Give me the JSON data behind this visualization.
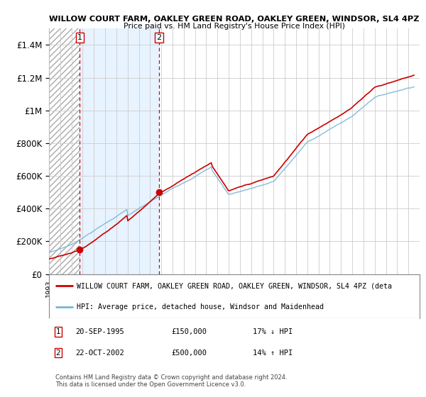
{
  "title": "WILLOW COURT FARM, OAKLEY GREEN ROAD, OAKLEY GREEN, WINDSOR, SL4 4PZ",
  "subtitle": "Price paid vs. HM Land Registry's House Price Index (HPI)",
  "ylim": [
    0,
    1500000
  ],
  "yticks": [
    0,
    200000,
    400000,
    600000,
    800000,
    1000000,
    1200000,
    1400000
  ],
  "ytick_labels": [
    "£0",
    "£200K",
    "£400K",
    "£600K",
    "£800K",
    "£1M",
    "£1.2M",
    "£1.4M"
  ],
  "sale1_year": 1995.72,
  "sale1_price": 150000,
  "sale1_label": "1",
  "sale1_date": "20-SEP-1995",
  "sale1_pct": "17% ↓ HPI",
  "sale2_year": 2002.8,
  "sale2_price": 500000,
  "sale2_label": "2",
  "sale2_date": "22-OCT-2002",
  "sale2_pct": "14% ↑ HPI",
  "hpi_color": "#7ab4d8",
  "price_color": "#cc0000",
  "sale_dot_color": "#cc0000",
  "vline_color": "#cc0000",
  "grid_color": "#cccccc",
  "legend_label_price": "WILLOW COURT FARM, OAKLEY GREEN ROAD, OAKLEY GREEN, WINDSOR, SL4 4PZ (deta",
  "legend_label_hpi": "HPI: Average price, detached house, Windsor and Maidenhead",
  "footer": "Contains HM Land Registry data © Crown copyright and database right 2024.\nThis data is licensed under the Open Government Licence v3.0.",
  "xmin": 1993,
  "xmax": 2026
}
